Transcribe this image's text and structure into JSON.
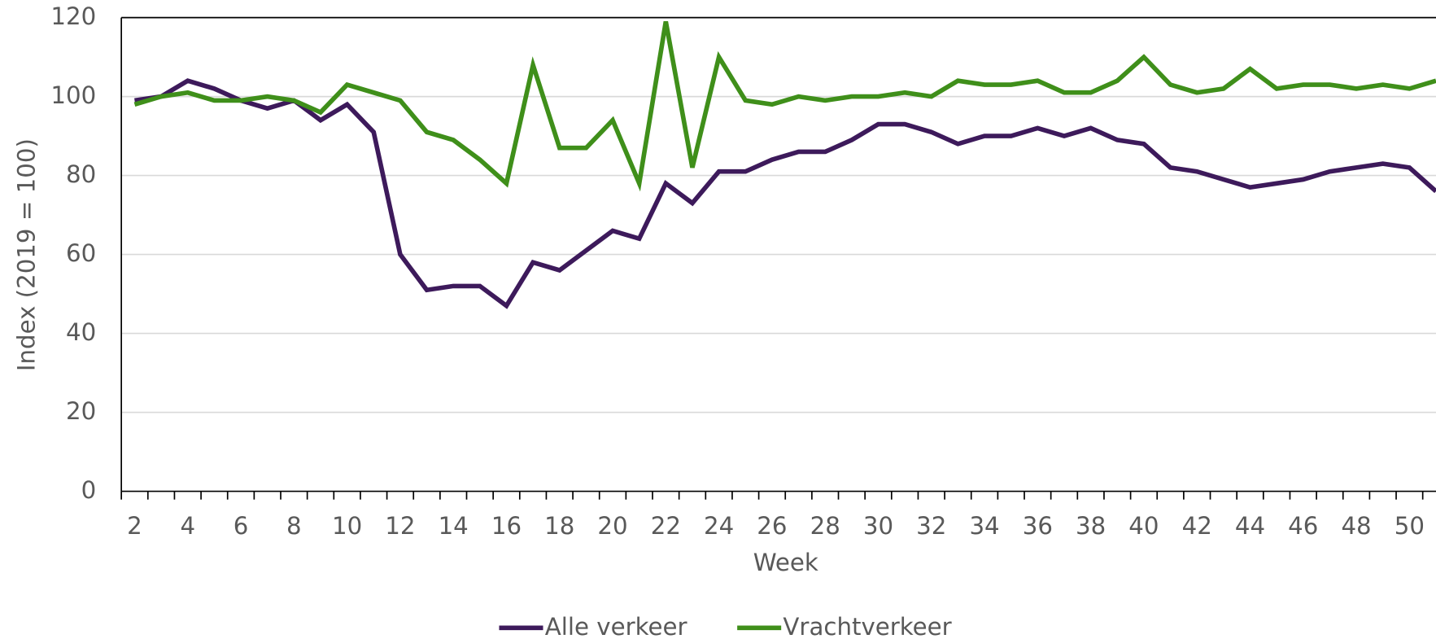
{
  "chart_data": {
    "type": "line",
    "x_label": "Week",
    "y_label": "Index (2019 = 100)",
    "categories": [
      "2",
      null,
      "4",
      null,
      "6",
      null,
      "8",
      null,
      "10",
      null,
      "12",
      null,
      "14",
      null,
      "16",
      null,
      "18",
      null,
      "20",
      null,
      "22",
      null,
      "24",
      null,
      "26",
      null,
      "28",
      null,
      "30",
      null,
      "32",
      null,
      "34",
      null,
      "36",
      null,
      "38",
      null,
      "40",
      null,
      "42",
      null,
      "44",
      null,
      "46",
      null,
      "48",
      null,
      "50",
      null
    ],
    "series": [
      {
        "name": "Alle verkeer",
        "color": "#3d1a5b",
        "values": [
          99,
          100,
          104,
          102,
          99,
          97,
          99,
          94,
          98,
          91,
          60,
          51,
          52,
          52,
          47,
          58,
          56,
          61,
          66,
          64,
          78,
          73,
          81,
          81,
          84,
          86,
          86,
          89,
          93,
          93,
          91,
          88,
          90,
          90,
          92,
          90,
          92,
          89,
          88,
          82,
          81,
          79,
          77,
          78,
          79,
          81,
          82,
          83,
          82,
          76
        ]
      },
      {
        "name": "Vrachtverkeer",
        "color": "#3f8f1a",
        "values": [
          98,
          100,
          101,
          99,
          99,
          100,
          99,
          96,
          103,
          101,
          99,
          91,
          89,
          84,
          78,
          108,
          87,
          87,
          94,
          78,
          119,
          82,
          110,
          99,
          98,
          100,
          99,
          100,
          100,
          101,
          100,
          104,
          103,
          103,
          104,
          101,
          101,
          104,
          110,
          103,
          101,
          102,
          107,
          102,
          103,
          103,
          102,
          103,
          102,
          104
        ]
      }
    ],
    "ylim": [
      0,
      120
    ],
    "yticks": [
      0,
      20,
      40,
      60,
      80,
      100,
      120
    ],
    "grid": true,
    "legend": "bottom"
  }
}
